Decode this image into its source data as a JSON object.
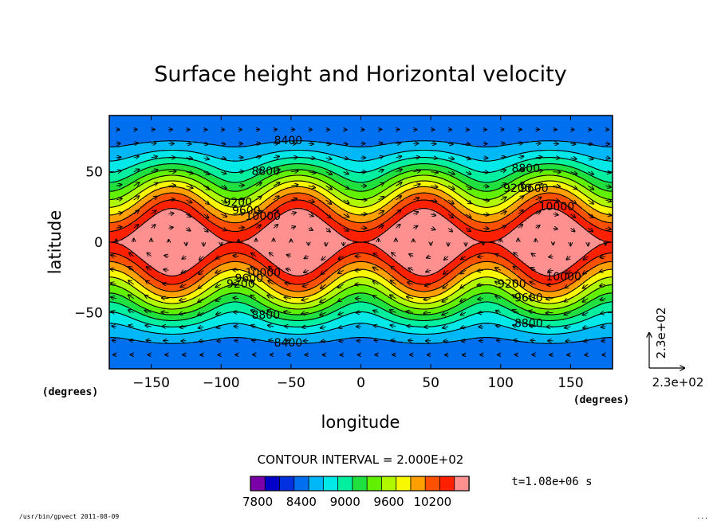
{
  "chart_data": {
    "type": "heatmap",
    "title": "Surface height and Horizontal velocity",
    "xlabel": "longitude",
    "ylabel": "latitude",
    "x_unit_label": "(degrees)",
    "y_unit_label": "(degrees)",
    "xlim": [
      -180,
      180
    ],
    "ylim": [
      -90,
      90
    ],
    "x_ticks": [
      -150,
      -100,
      -50,
      0,
      50,
      100,
      150
    ],
    "y_ticks": [
      -50,
      0,
      50
    ],
    "contour_interval_label": "CONTOUR INTERVAL = 2.000E+02",
    "time_label": "t=1.08e+06 s",
    "colorbar": {
      "levels": [
        7800,
        8000,
        8200,
        8400,
        8600,
        8800,
        9000,
        9200,
        9400,
        9600,
        9800,
        10000,
        10200,
        10400
      ],
      "tick_labels": [
        "7800",
        "8400",
        "9000",
        "9600",
        "10200"
      ],
      "tick_values": [
        7800,
        8400,
        9000,
        9600,
        10200
      ],
      "colors": [
        "#7a00a8",
        "#0000c8",
        "#0030e0",
        "#0070f0",
        "#00b8f8",
        "#00e8e8",
        "#00f0a0",
        "#20e040",
        "#60f000",
        "#b0f800",
        "#f8f800",
        "#ffa000",
        "#ff5000",
        "#ff2000",
        "#ff9090"
      ]
    },
    "field": {
      "zonal_waves": 4,
      "wave_phase_peak_longitude_deg": -45,
      "equator_height": 10400,
      "pole_height": 8200
    },
    "contour_labels": [
      {
        "text": "8400",
        "lon": -52,
        "lat": 72
      },
      {
        "text": "8800",
        "lon": -68,
        "lat": 50
      },
      {
        "text": "9200",
        "lon": -88,
        "lat": 28
      },
      {
        "text": "9600",
        "lon": -82,
        "lat": 22
      },
      {
        "text": "10000",
        "lon": -70,
        "lat": 18
      },
      {
        "text": "8800",
        "lon": 118,
        "lat": 52
      },
      {
        "text": "9200",
        "lon": 112,
        "lat": 38
      },
      {
        "text": "9600",
        "lon": 124,
        "lat": 38
      },
      {
        "text": "10000",
        "lon": 140,
        "lat": 25
      },
      {
        "text": "10000",
        "lon": -70,
        "lat": -22
      },
      {
        "text": "9600",
        "lon": -80,
        "lat": -26
      },
      {
        "text": "9200",
        "lon": -86,
        "lat": -30
      },
      {
        "text": "8800",
        "lon": -68,
        "lat": -52
      },
      {
        "text": "8400",
        "lon": -52,
        "lat": -72
      },
      {
        "text": "9200",
        "lon": 108,
        "lat": -30
      },
      {
        "text": "9600",
        "lon": 120,
        "lat": -40
      },
      {
        "text": "8800",
        "lon": 120,
        "lat": -58
      },
      {
        "text": "10000",
        "lon": 145,
        "lat": -25
      }
    ],
    "vector_reference": {
      "x_label": "2.3e+02",
      "y_label": "2.3e+02"
    }
  },
  "footer": {
    "left": "/usr/bin/gpvect  2011-08-09",
    "right": "..."
  }
}
